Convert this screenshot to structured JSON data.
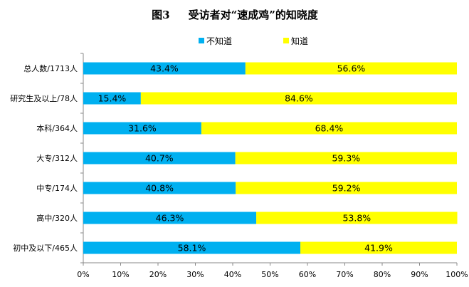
{
  "chart_data": {
    "type": "bar",
    "orientation": "horizontal",
    "stacked": true,
    "title": "图3     受访者对“速成鸡”的知晓度",
    "categories": [
      "总人数/1713人",
      "研究生及以上/78人",
      "本科/364人",
      "大专/312人",
      "中专/174人",
      "高中/320人",
      "初中及以下/465人"
    ],
    "series": [
      {
        "name": "不知道",
        "color": "#00B0F0",
        "values": [
          43.4,
          15.4,
          31.6,
          40.7,
          40.8,
          46.3,
          58.1
        ],
        "labels": [
          "43.4%",
          "15.4%",
          "31.6%",
          "40.7%",
          "40.8%",
          "46.3%",
          "58.1%"
        ]
      },
      {
        "name": "知道",
        "color": "#FFFF00",
        "values": [
          56.6,
          84.6,
          68.4,
          59.3,
          59.2,
          53.8,
          41.9
        ],
        "labels": [
          "56.6%",
          "84.6%",
          "68.4%",
          "59.3%",
          "59.2%",
          "53.8%",
          "41.9%"
        ]
      }
    ],
    "xlim": [
      0,
      100
    ],
    "x_ticks": [
      "0%",
      "10%",
      "20%",
      "30%",
      "40%",
      "50%",
      "60%",
      "70%",
      "80%",
      "90%",
      "100%"
    ],
    "grid": false,
    "legend": "top-center"
  }
}
